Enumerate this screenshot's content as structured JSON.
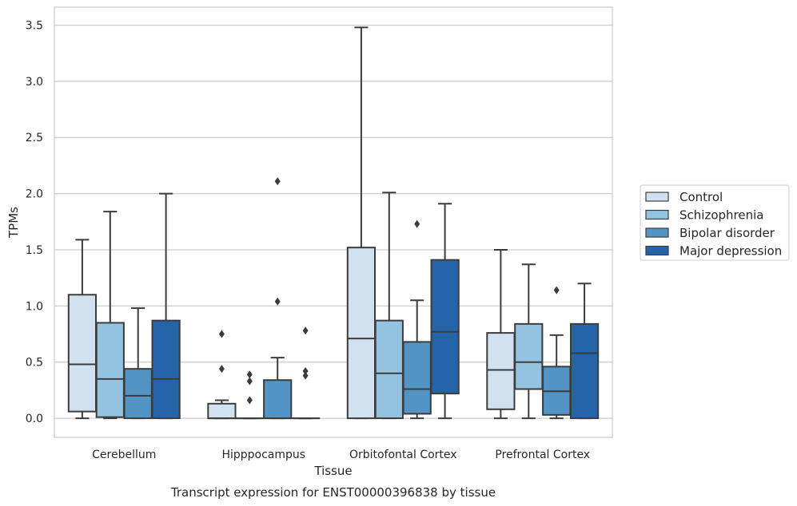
{
  "chart_data": {
    "type": "box",
    "title": "",
    "caption": "Transcript expression for ENST00000396838 by tissue",
    "xlabel": "Tissue",
    "ylabel": "TPMs",
    "ylim": [
      -0.17,
      3.66
    ],
    "yticks": [
      "0.0",
      "0.5",
      "1.0",
      "1.5",
      "2.0",
      "2.5",
      "3.0",
      "3.5"
    ],
    "ytick_values": [
      0,
      0.5,
      1.0,
      1.5,
      2.0,
      2.5,
      3.0,
      3.5
    ],
    "grid": "horizontal",
    "legend_position": "right",
    "categories": [
      "Cerebellum",
      "Hipppocampus",
      "Orbitofontal Cortex",
      "Prefrontal Cortex"
    ],
    "series": [
      {
        "name": "Control",
        "color": "#d1e1ef",
        "boxes": [
          {
            "min": 0.0,
            "q1": 0.06,
            "median": 0.48,
            "q3": 1.1,
            "max": 1.59,
            "outliers": []
          },
          {
            "min": 0.0,
            "q1": 0.0,
            "median": 0.0,
            "q3": 0.13,
            "max": 0.16,
            "outliers": [
              0.44,
              0.75
            ]
          },
          {
            "min": 0.0,
            "q1": 0.0,
            "median": 0.71,
            "q3": 1.52,
            "max": 3.48,
            "outliers": []
          },
          {
            "min": 0.0,
            "q1": 0.08,
            "median": 0.43,
            "q3": 0.76,
            "max": 1.5,
            "outliers": []
          }
        ]
      },
      {
        "name": "Schizophrenia",
        "color": "#93c3de",
        "boxes": [
          {
            "min": 0.0,
            "q1": 0.01,
            "median": 0.35,
            "q3": 0.85,
            "max": 1.84,
            "outliers": []
          },
          {
            "min": 0.0,
            "q1": 0.0,
            "median": 0.0,
            "q3": 0.0,
            "max": 0.0,
            "outliers": [
              0.16,
              0.33,
              0.39
            ]
          },
          {
            "min": 0.0,
            "q1": 0.0,
            "median": 0.4,
            "q3": 0.87,
            "max": 2.01,
            "outliers": []
          },
          {
            "min": 0.0,
            "q1": 0.26,
            "median": 0.5,
            "q3": 0.84,
            "max": 1.37,
            "outliers": []
          }
        ]
      },
      {
        "name": "Bipolar disorder",
        "color": "#5295c4",
        "boxes": [
          {
            "min": 0.0,
            "q1": 0.0,
            "median": 0.2,
            "q3": 0.44,
            "max": 0.98,
            "outliers": []
          },
          {
            "min": 0.0,
            "q1": 0.0,
            "median": 0.0,
            "q3": 0.34,
            "max": 0.54,
            "outliers": [
              1.04,
              2.11
            ]
          },
          {
            "min": 0.0,
            "q1": 0.04,
            "median": 0.26,
            "q3": 0.68,
            "max": 1.05,
            "outliers": [
              1.73
            ]
          },
          {
            "min": 0.0,
            "q1": 0.03,
            "median": 0.24,
            "q3": 0.46,
            "max": 0.74,
            "outliers": [
              1.14
            ]
          }
        ]
      },
      {
        "name": "Major depression",
        "color": "#2664a9",
        "boxes": [
          {
            "min": 0.0,
            "q1": 0.0,
            "median": 0.35,
            "q3": 0.87,
            "max": 2.0,
            "outliers": []
          },
          {
            "min": 0.0,
            "q1": 0.0,
            "median": 0.0,
            "q3": 0.0,
            "max": 0.0,
            "outliers": [
              0.38,
              0.42,
              0.78
            ]
          },
          {
            "min": 0.0,
            "q1": 0.22,
            "median": 0.77,
            "q3": 1.41,
            "max": 1.91,
            "outliers": []
          },
          {
            "min": 0.0,
            "q1": 0.0,
            "median": 0.58,
            "q3": 0.84,
            "max": 1.2,
            "outliers": []
          }
        ]
      }
    ]
  }
}
